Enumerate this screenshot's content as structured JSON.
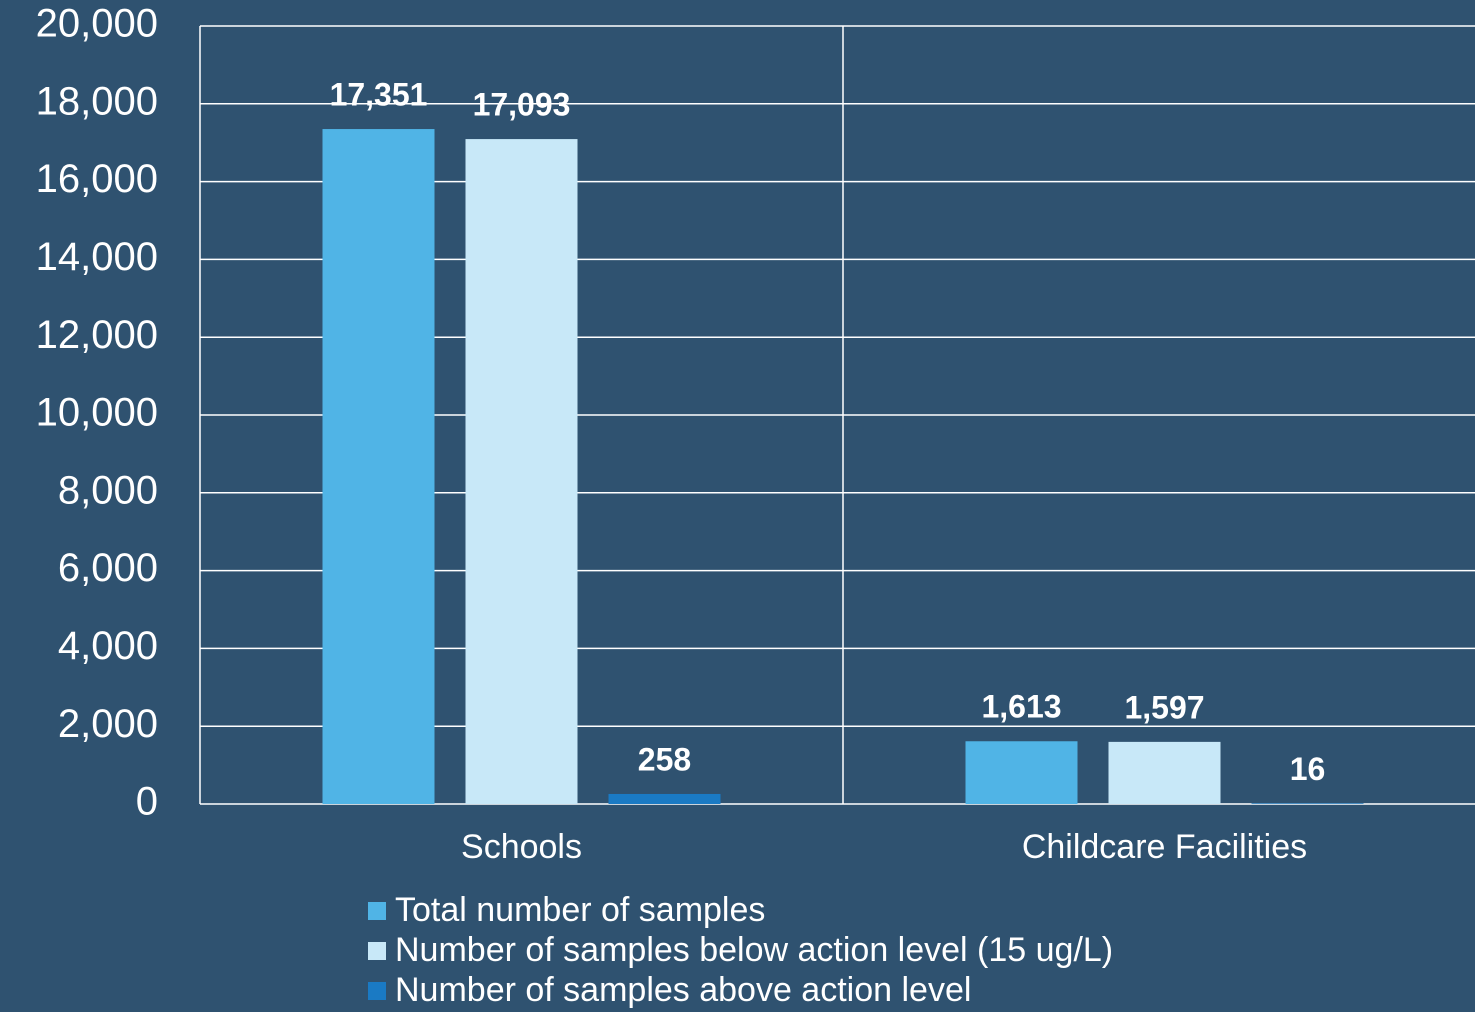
{
  "chart_data": {
    "type": "bar",
    "categories": [
      "Schools",
      "Childcare Facilities"
    ],
    "series": [
      {
        "name": "Total number of samples",
        "color": "#50b4e6",
        "values": [
          17351,
          1613
        ],
        "value_labels": [
          "17,351",
          "1,613"
        ]
      },
      {
        "name": "Number of samples below action level (15 ug/L)",
        "color": "#c8e8f8",
        "values": [
          17093,
          1597
        ],
        "value_labels": [
          "17,093",
          "1,597"
        ]
      },
      {
        "name": "Number of samples above action level",
        "color": "#1a7ac4",
        "values": [
          258,
          16
        ]
      }
    ],
    "ylim": [
      0,
      20000
    ],
    "yticks": [
      0,
      {
        "value": 2000,
        "label": "2,000"
      },
      {
        "value": 4000,
        "label": "4,000"
      },
      {
        "value": 6000,
        "label": "6,000"
      },
      {
        "value": 8000,
        "label": "8,000"
      },
      {
        "value": 10000,
        "label": "10,000"
      },
      {
        "value": 12000,
        "label": "12,000"
      },
      {
        "value": 14000,
        "label": "14,000"
      },
      {
        "value": 16000,
        "label": "16,000"
      },
      {
        "value": 18000,
        "label": "18,000"
      },
      {
        "value": 20000,
        "label": "20,000"
      }
    ],
    "grid": true,
    "legend": "bottom"
  }
}
